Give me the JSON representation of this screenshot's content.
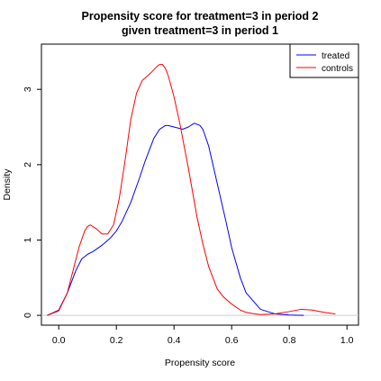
{
  "chart_data": {
    "type": "line",
    "title_line1": "Propensity score for treatment=3 in period 2",
    "title_line2": "given treatment=3 in period 1",
    "xlabel": "Propensity score",
    "ylabel": "Density",
    "xlim": [
      -0.06,
      1.04
    ],
    "ylim": [
      -0.13,
      3.6
    ],
    "x_ticks": [
      "0.0",
      "0.2",
      "0.4",
      "0.6",
      "0.8",
      "1.0"
    ],
    "y_ticks": [
      "0",
      "1",
      "2",
      "3"
    ],
    "legend": {
      "position": "top-right",
      "entries": [
        "treated",
        "controls"
      ]
    },
    "series": [
      {
        "name": "treated",
        "color": "#0000ff",
        "x": [
          -0.04,
          0.0,
          0.03,
          0.06,
          0.08,
          0.1,
          0.12,
          0.15,
          0.18,
          0.2,
          0.22,
          0.25,
          0.28,
          0.3,
          0.33,
          0.35,
          0.37,
          0.38,
          0.4,
          0.43,
          0.45,
          0.47,
          0.49,
          0.5,
          0.52,
          0.55,
          0.58,
          0.6,
          0.63,
          0.65,
          0.7,
          0.75,
          0.8,
          0.85
        ],
        "y": [
          0.0,
          0.07,
          0.3,
          0.6,
          0.75,
          0.81,
          0.85,
          0.93,
          1.03,
          1.12,
          1.25,
          1.5,
          1.82,
          2.05,
          2.35,
          2.47,
          2.52,
          2.52,
          2.5,
          2.47,
          2.5,
          2.55,
          2.52,
          2.47,
          2.25,
          1.75,
          1.25,
          0.9,
          0.5,
          0.3,
          0.08,
          0.02,
          0.005,
          0.0
        ]
      },
      {
        "name": "controls",
        "color": "#ff0000",
        "x": [
          -0.04,
          0.0,
          0.03,
          0.05,
          0.07,
          0.09,
          0.1,
          0.11,
          0.13,
          0.15,
          0.17,
          0.19,
          0.21,
          0.23,
          0.25,
          0.27,
          0.29,
          0.3,
          0.32,
          0.34,
          0.35,
          0.36,
          0.37,
          0.38,
          0.4,
          0.42,
          0.45,
          0.48,
          0.5,
          0.52,
          0.55,
          0.57,
          0.6,
          0.63,
          0.65,
          0.68,
          0.7,
          0.75,
          0.8,
          0.84,
          0.88,
          0.92,
          0.96
        ],
        "y": [
          0.0,
          0.06,
          0.3,
          0.6,
          0.9,
          1.12,
          1.18,
          1.2,
          1.15,
          1.08,
          1.08,
          1.2,
          1.55,
          2.05,
          2.6,
          2.95,
          3.12,
          3.15,
          3.22,
          3.3,
          3.33,
          3.33,
          3.28,
          3.18,
          2.9,
          2.55,
          1.95,
          1.3,
          0.95,
          0.65,
          0.35,
          0.25,
          0.15,
          0.07,
          0.04,
          0.02,
          0.01,
          0.02,
          0.05,
          0.08,
          0.07,
          0.04,
          0.02
        ]
      }
    ]
  }
}
